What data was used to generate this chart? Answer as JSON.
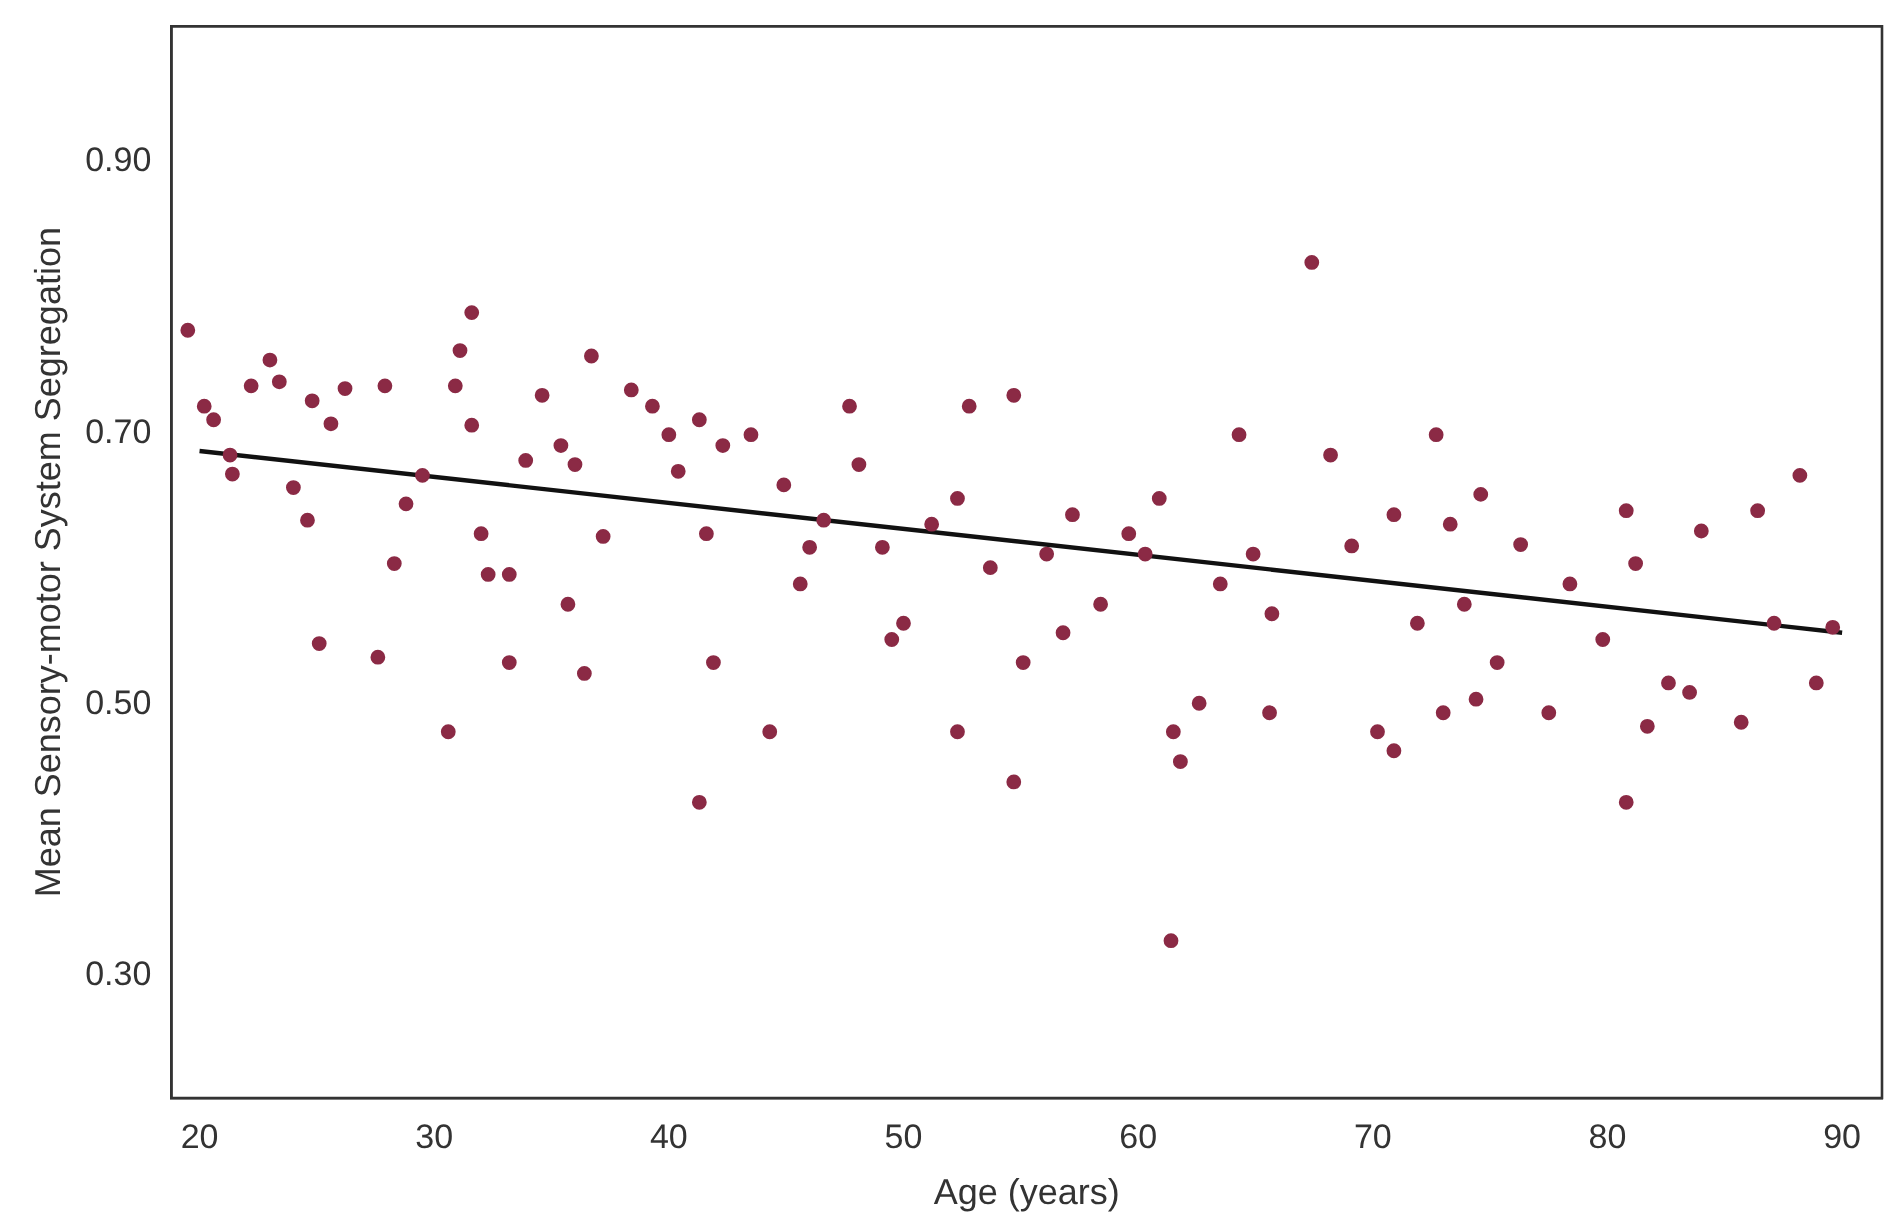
{
  "chart_data": {
    "type": "scatter",
    "xlabel": "Age (years)",
    "ylabel": "Mean Sensory-motor System Segregation",
    "xlim": [
      18.8,
      91.7
    ],
    "ylim": [
      0.21,
      1.0
    ],
    "xticks": [
      20,
      30,
      40,
      50,
      60,
      70,
      80,
      90
    ],
    "yticks": [
      {
        "value": 0.3,
        "label": "0.30"
      },
      {
        "value": 0.5,
        "label": "0.50"
      },
      {
        "value": 0.7,
        "label": "0.70"
      },
      {
        "value": 0.9,
        "label": "0.90"
      }
    ],
    "series": [
      {
        "marker": "circle",
        "color": "#8b2a45",
        "x": [
          19.5,
          20.2,
          20.6,
          21.3,
          21.4,
          22.2,
          23,
          23.4,
          24,
          24.6,
          24.8,
          25.6,
          26.2,
          27.9,
          25.1,
          27.6,
          30.6,
          31.6,
          31.1,
          30.9,
          31.6,
          32,
          32.3,
          33.2,
          33.9,
          34.6,
          35.4,
          36,
          36.7,
          37.2,
          38.4,
          39.3,
          40,
          40.4,
          41.3,
          41.6,
          42.3,
          43.5,
          44.9,
          45.6,
          46.6,
          47.7,
          48.1,
          49.1,
          50,
          51.2,
          52.3,
          52.8,
          53.7,
          54.7,
          55.1,
          56.1,
          57.2,
          58.4,
          59.6,
          60.3,
          60.9,
          61.5,
          61.8,
          61.4,
          62.6,
          63.5,
          64.3,
          64.9,
          65.6,
          67.4,
          68.2,
          69.1,
          70.2,
          70.9,
          71.9,
          72.7,
          73.3,
          73.9,
          74.6,
          75.3,
          76.3,
          77.5,
          78.4,
          79.8,
          80.8,
          81.2,
          81.7,
          80.8,
          82.6,
          83.5,
          84,
          85.7,
          86.4,
          87.1,
          88.2,
          88.9,
          89.6,
          41.3,
          44.3,
          36.4,
          52.3,
          54.7,
          49.5,
          28.3,
          28.8,
          29.5,
          33.2,
          35.7,
          41.9,
          46,
          56.8,
          65.7,
          70.9,
          73,
          74.4
        ],
        "values": [
          0.776,
          0.72,
          0.71,
          0.684,
          0.67,
          0.735,
          0.754,
          0.738,
          0.66,
          0.636,
          0.724,
          0.707,
          0.733,
          0.735,
          0.545,
          0.535,
          0.48,
          0.789,
          0.761,
          0.735,
          0.706,
          0.626,
          0.596,
          0.596,
          0.68,
          0.728,
          0.691,
          0.677,
          0.757,
          0.624,
          0.732,
          0.72,
          0.699,
          0.672,
          0.71,
          0.626,
          0.691,
          0.699,
          0.662,
          0.589,
          0.636,
          0.72,
          0.677,
          0.616,
          0.56,
          0.633,
          0.652,
          0.72,
          0.601,
          0.728,
          0.531,
          0.611,
          0.64,
          0.574,
          0.626,
          0.611,
          0.652,
          0.48,
          0.458,
          0.326,
          0.501,
          0.589,
          0.699,
          0.611,
          0.494,
          0.826,
          0.684,
          0.617,
          0.48,
          0.64,
          0.56,
          0.699,
          0.633,
          0.574,
          0.655,
          0.531,
          0.618,
          0.494,
          0.589,
          0.548,
          0.643,
          0.604,
          0.484,
          0.428,
          0.516,
          0.509,
          0.628,
          0.487,
          0.643,
          0.56,
          0.669,
          0.516,
          0.557,
          0.428,
          0.48,
          0.523,
          0.48,
          0.443,
          0.548,
          0.604,
          0.648,
          0.669,
          0.531,
          0.574,
          0.531,
          0.616,
          0.553,
          0.567,
          0.466,
          0.494,
          0.504
        ]
      },
      {
        "type": "line",
        "color": "#111111",
        "x": [
          20,
          90
        ],
        "values": [
          0.687,
          0.553
        ]
      }
    ]
  }
}
